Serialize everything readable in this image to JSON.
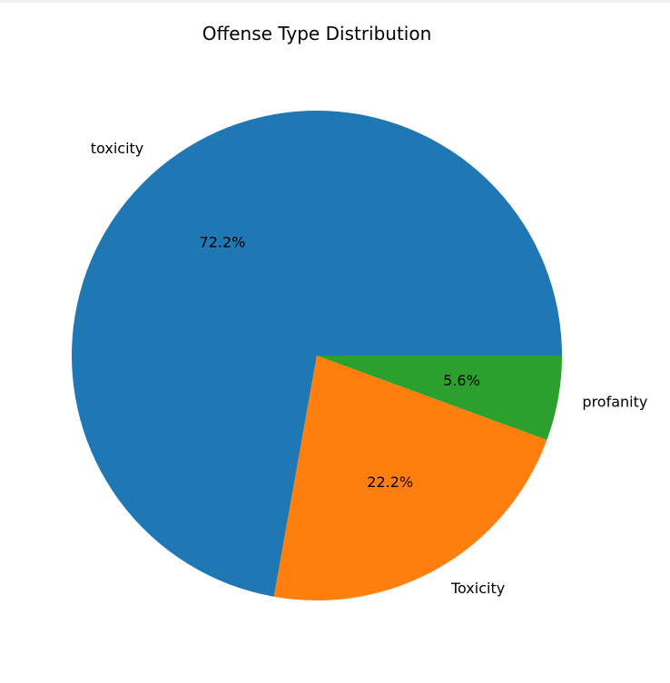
{
  "chart_data": {
    "type": "pie",
    "title": "Offense Type Distribution",
    "categories": [
      "toxicity",
      "Toxicity",
      "profanity"
    ],
    "values": [
      72.2,
      22.2,
      5.6
    ],
    "percent_labels": [
      "72.2%",
      "22.2%",
      "5.6%"
    ],
    "colors": [
      "#1f77b4",
      "#ff7f0e",
      "#2ca02c"
    ],
    "start_angle_deg": 0,
    "direction": "counterclockwise",
    "legend": "none"
  }
}
